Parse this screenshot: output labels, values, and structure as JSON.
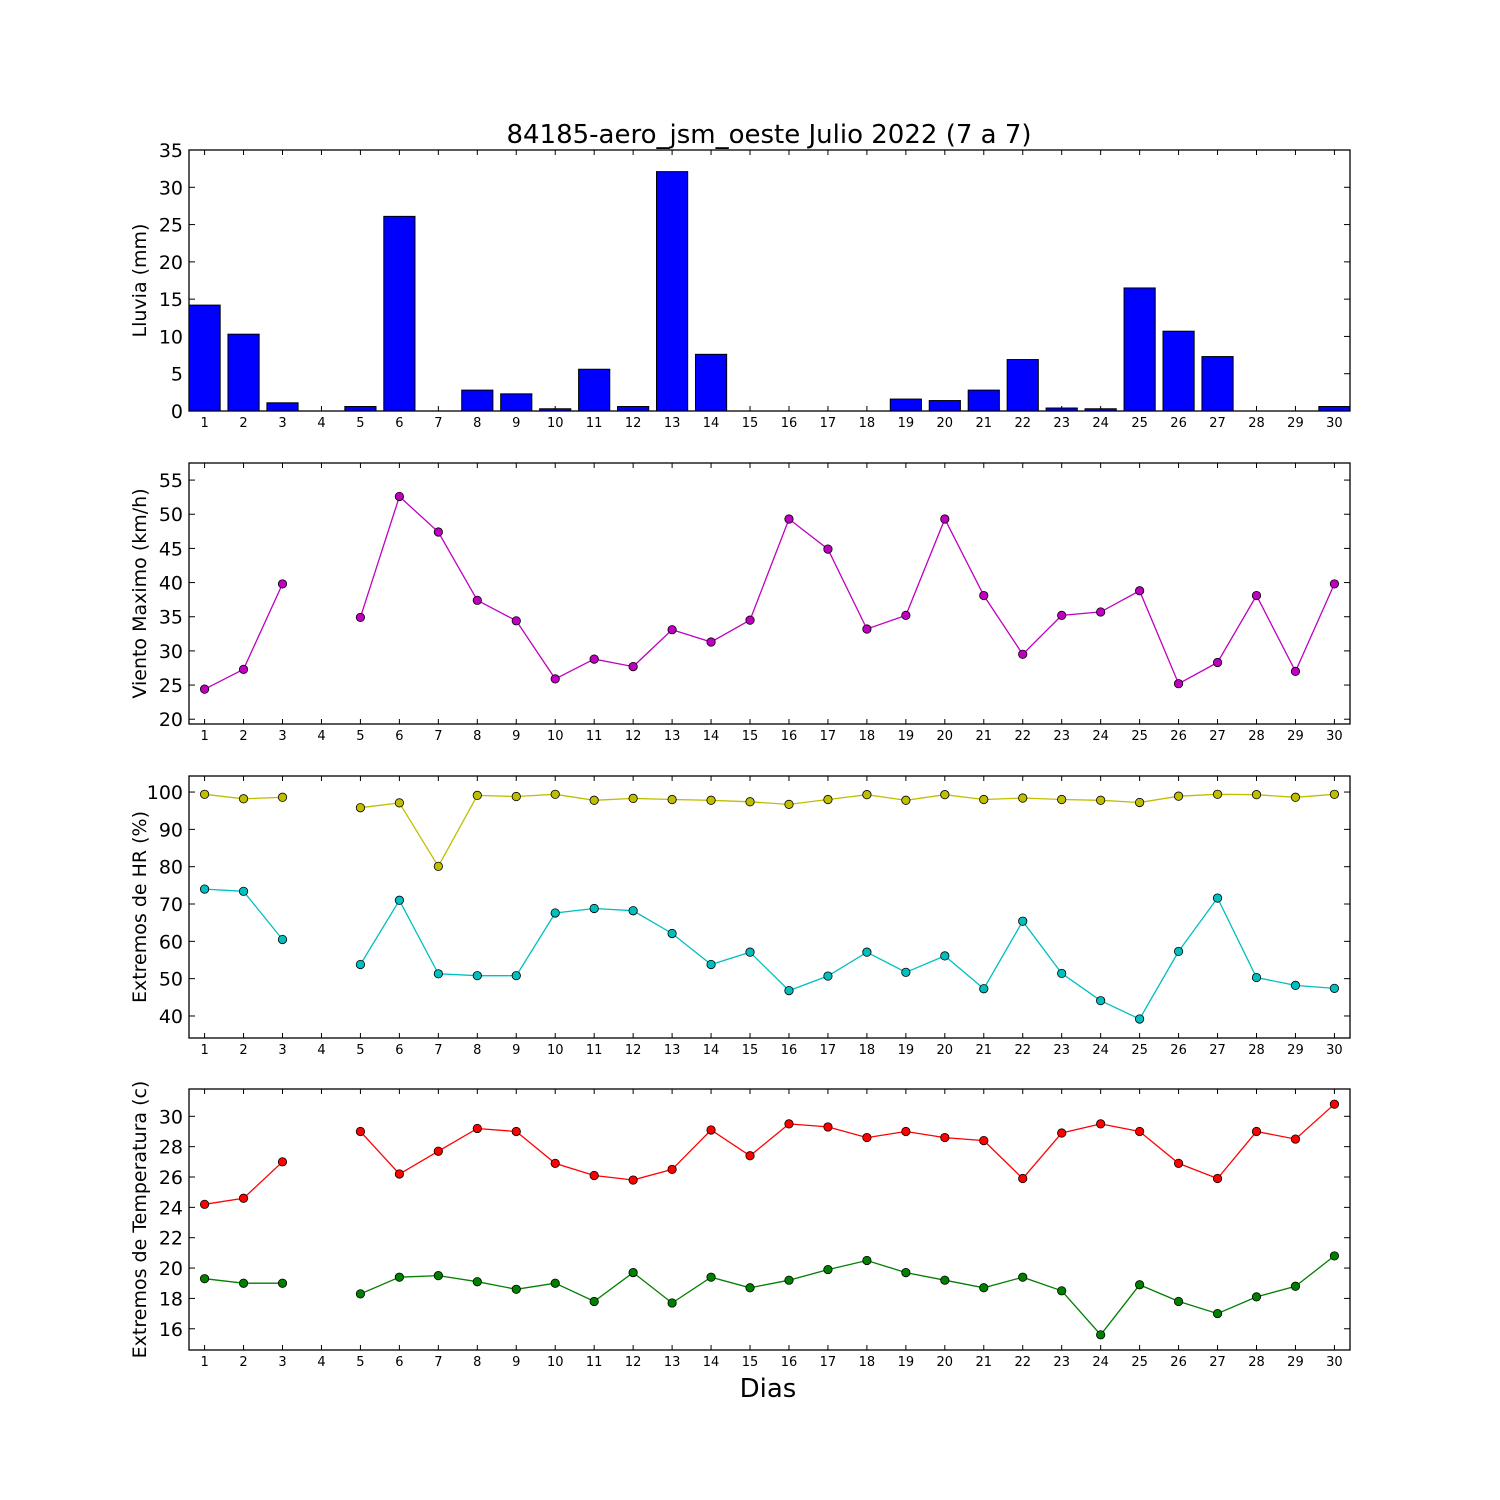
{
  "figure": {
    "title": "84185-aero_jsm_oeste Julio 2022  (7 a 7)",
    "xlabel": "Dias"
  },
  "chart_data": [
    {
      "type": "bar",
      "ylabel": "Lluvia (mm)",
      "ylim": [
        0,
        35
      ],
      "yticks": [
        0,
        5,
        10,
        15,
        20,
        25,
        30,
        35
      ],
      "categories": [
        1,
        2,
        3,
        4,
        5,
        6,
        7,
        8,
        9,
        10,
        11,
        12,
        13,
        14,
        15,
        16,
        17,
        18,
        19,
        20,
        21,
        22,
        23,
        24,
        25,
        26,
        27,
        28,
        29,
        30
      ],
      "grid": false,
      "series": [
        {
          "color": "#0000ff",
          "values": [
            14.2,
            10.3,
            1.1,
            0,
            0.6,
            26.1,
            0,
            2.8,
            2.3,
            0.3,
            5.6,
            0.6,
            32.1,
            7.6,
            0,
            0,
            0,
            0,
            1.6,
            1.4,
            2.8,
            6.9,
            0.4,
            0.3,
            16.5,
            10.7,
            7.3,
            0,
            0,
            0.6
          ]
        }
      ]
    },
    {
      "type": "line",
      "ylabel": "Viento Maximo (km/h)",
      "ylim": [
        19.3,
        57.5
      ],
      "yticks": [
        20,
        25,
        30,
        35,
        40,
        45,
        50,
        55
      ],
      "x": [
        1,
        2,
        3,
        4,
        5,
        6,
        7,
        8,
        9,
        10,
        11,
        12,
        13,
        14,
        15,
        16,
        17,
        18,
        19,
        20,
        21,
        22,
        23,
        24,
        25,
        26,
        27,
        28,
        29,
        30
      ],
      "grid": false,
      "series": [
        {
          "color": "#bf00bf",
          "values": [
            24.4,
            27.3,
            39.8,
            null,
            34.9,
            52.6,
            47.4,
            37.4,
            34.4,
            25.9,
            28.8,
            27.7,
            33.1,
            31.3,
            34.5,
            49.3,
            44.9,
            33.2,
            35.2,
            49.3,
            38.1,
            29.5,
            35.2,
            35.7,
            38.8,
            25.2,
            28.3,
            38.1,
            27.0,
            39.8
          ]
        }
      ]
    },
    {
      "type": "line",
      "ylabel": "Extremos de HR (%)",
      "ylim": [
        34.1,
        104.3
      ],
      "yticks": [
        40,
        50,
        60,
        70,
        80,
        90,
        100
      ],
      "x": [
        1,
        2,
        3,
        4,
        5,
        6,
        7,
        8,
        9,
        10,
        11,
        12,
        13,
        14,
        15,
        16,
        17,
        18,
        19,
        20,
        21,
        22,
        23,
        24,
        25,
        26,
        27,
        28,
        29,
        30
      ],
      "grid": false,
      "series": [
        {
          "color": "#bfbf00",
          "values": [
            99.4,
            98.2,
            98.6,
            null,
            95.8,
            97.1,
            80.1,
            99.1,
            98.8,
            99.4,
            97.8,
            98.3,
            98.0,
            97.8,
            97.4,
            96.7,
            98.0,
            99.3,
            97.8,
            99.3,
            98.0,
            98.4,
            98.0,
            97.8,
            97.2,
            98.9,
            99.4,
            99.3,
            98.6,
            99.4
          ]
        },
        {
          "color": "#00bfbf",
          "values": [
            74.0,
            73.4,
            60.5,
            null,
            53.8,
            71.0,
            51.3,
            50.8,
            50.8,
            67.6,
            68.8,
            68.2,
            62.1,
            53.8,
            57.1,
            46.8,
            50.7,
            57.1,
            51.7,
            56.1,
            47.3,
            65.4,
            51.4,
            44.1,
            39.2,
            57.3,
            71.6,
            50.3,
            48.2,
            47.4
          ]
        }
      ]
    },
    {
      "type": "line",
      "ylabel": "Extremos de Temperatura (c)",
      "ylim": [
        14.6,
        31.8
      ],
      "yticks": [
        16,
        18,
        20,
        22,
        24,
        26,
        28,
        30
      ],
      "x": [
        1,
        2,
        3,
        4,
        5,
        6,
        7,
        8,
        9,
        10,
        11,
        12,
        13,
        14,
        15,
        16,
        17,
        18,
        19,
        20,
        21,
        22,
        23,
        24,
        25,
        26,
        27,
        28,
        29,
        30
      ],
      "grid": false,
      "series": [
        {
          "color": "#ff0000",
          "values": [
            24.2,
            24.6,
            27.0,
            null,
            29.0,
            26.2,
            27.7,
            29.2,
            29.0,
            26.9,
            26.1,
            25.8,
            26.5,
            29.1,
            27.4,
            29.5,
            29.3,
            28.6,
            29.0,
            28.6,
            28.4,
            25.9,
            28.9,
            29.5,
            29.0,
            26.9,
            25.9,
            29.0,
            28.5,
            30.8
          ]
        },
        {
          "color": "#007f00",
          "values": [
            19.3,
            19.0,
            19.0,
            null,
            18.3,
            19.4,
            19.5,
            19.1,
            18.6,
            19.0,
            17.8,
            19.7,
            17.7,
            19.4,
            18.7,
            19.2,
            19.9,
            20.5,
            19.7,
            19.2,
            18.7,
            19.4,
            18.5,
            15.6,
            18.9,
            17.8,
            17.0,
            18.1,
            18.8,
            20.8
          ]
        }
      ]
    }
  ]
}
